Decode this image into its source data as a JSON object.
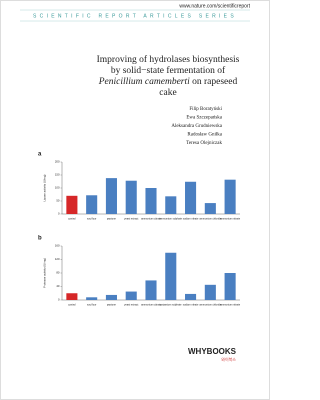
{
  "header": {
    "url": "www.nature.com/scientificreport",
    "series": "SCIENTIFIC REPORT ARTICLES SERIES"
  },
  "title": {
    "line1": "Improving of hydrolases biosynthesis",
    "line2": "by solid−state fermentation of",
    "line3_italic": "Penicillium camemberti",
    "line3_rest": "on rapeseed",
    "line4": "cake"
  },
  "authors": [
    "Filip Boratyński",
    "Ewa Szczepańska",
    "Aleksandra Grudniewska",
    "Radosław Gniłka",
    "Teresa Olejniczak"
  ],
  "chart_data": [
    {
      "type": "bar",
      "panel_label": "a",
      "y_label": "Lipase activity (U/mg)",
      "categories": [
        "control",
        "soy flour",
        "peptone",
        "yeast extract",
        "ammonium citrate",
        "ammonium sulphate",
        "sodium nitrate",
        "ammonium chloride",
        "ammonium nitrate"
      ],
      "values": [
        70,
        72,
        138,
        128,
        100,
        68,
        124,
        42,
        132
      ],
      "colors": [
        "#d62728",
        "#4a7fc1",
        "#4a7fc1",
        "#4a7fc1",
        "#4a7fc1",
        "#4a7fc1",
        "#4a7fc1",
        "#4a7fc1",
        "#4a7fc1"
      ],
      "ylim": [
        0,
        200
      ],
      "yticks": [
        0,
        50,
        100,
        150,
        200
      ]
    },
    {
      "type": "bar",
      "panel_label": "b",
      "y_label": "Protease activity (U/mg)",
      "categories": [
        "control",
        "soy flour",
        "peptone",
        "yeast extract",
        "ammonium citrate",
        "potassium sulphate",
        "sodium nitrate",
        "ammonium chloride",
        "ammonium nitrate"
      ],
      "values": [
        20,
        8,
        15,
        25,
        58,
        140,
        18,
        45,
        80
      ],
      "colors": [
        "#d62728",
        "#4a7fc1",
        "#4a7fc1",
        "#4a7fc1",
        "#4a7fc1",
        "#4a7fc1",
        "#4a7fc1",
        "#4a7fc1",
        "#4a7fc1"
      ],
      "ylim": [
        0,
        160
      ],
      "yticks": [
        0,
        40,
        80,
        120,
        160
      ]
    }
  ],
  "publisher": {
    "name": "WHYBOOKS",
    "korean": "와이북스"
  }
}
